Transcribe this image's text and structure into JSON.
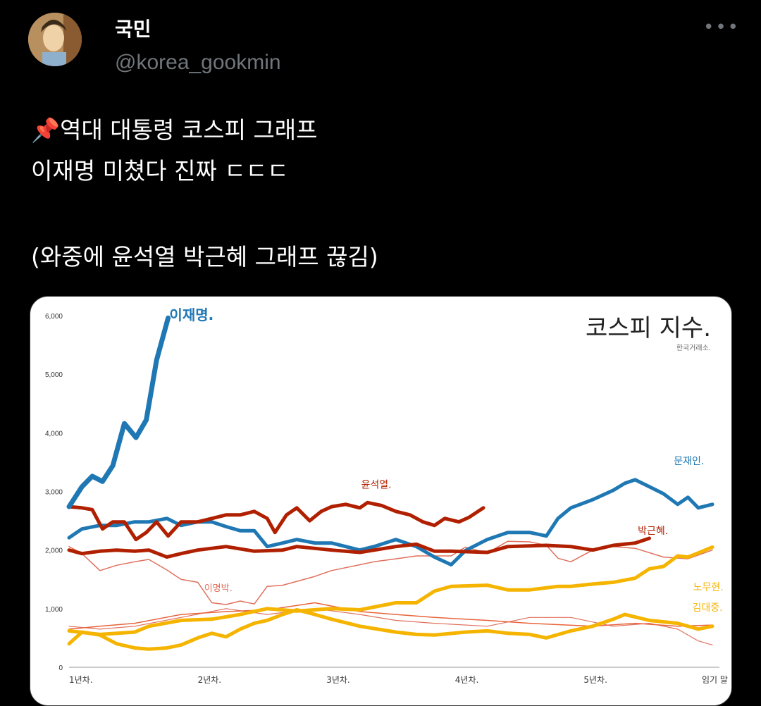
{
  "author": {
    "name": "국민",
    "handle": "@korea_gookmin",
    "avatar_icon": "avatar-cartoon-man"
  },
  "more_icon": "more-dots-icon",
  "post": {
    "pin_icon": "pushpin-icon",
    "line1": "역대 대통령 코스피 그래프",
    "line2": "이재명 미쳤다 진짜 ㄷㄷㄷ",
    "line3": "(와중에 윤석열 박근혜 그래프 끊김)"
  },
  "chart_data": {
    "type": "line",
    "title": "코스피 지수.",
    "source": "한국거래소.",
    "xlabel": "",
    "ylabel": "",
    "x_ticks": [
      {
        "x": 1,
        "label": "1년차."
      },
      {
        "x": 2,
        "label": "2년차."
      },
      {
        "x": 3,
        "label": "3년차."
      },
      {
        "x": 4,
        "label": "4년차."
      },
      {
        "x": 5,
        "label": "5년차."
      },
      {
        "x": 6,
        "label": "임기 말"
      }
    ],
    "y_ticks": [
      {
        "y": 0,
        "label": "0"
      },
      {
        "y": 1000,
        "label": "1,000"
      },
      {
        "y": 2000,
        "label": "2,000"
      },
      {
        "y": 3000,
        "label": "3,000"
      },
      {
        "y": 4000,
        "label": "4,000"
      },
      {
        "y": 5000,
        "label": "5,000"
      },
      {
        "y": 6000,
        "label": "6,000"
      }
    ],
    "xlim": [
      1,
      6
    ],
    "ylim": [
      0,
      6000
    ],
    "grid": false,
    "series": [
      {
        "name": "이재명.",
        "color": "#1f78b4",
        "width": 7,
        "label_at": [
          1.78,
          5930
        ],
        "label_size": 20,
        "bold": true,
        "x": [
          1.0,
          1.1,
          1.18,
          1.26,
          1.34,
          1.43,
          1.52,
          1.6,
          1.68,
          1.77
        ],
        "y": [
          2740,
          3080,
          3260,
          3170,
          3440,
          4160,
          3920,
          4220,
          5240,
          5960
        ]
      },
      {
        "name": "문재인.",
        "color": "#1f78b4",
        "width": 5,
        "label_at": [
          5.7,
          3460
        ],
        "label_size": 14,
        "bold": false,
        "x": [
          1.0,
          1.1,
          1.24,
          1.37,
          1.51,
          1.62,
          1.76,
          1.87,
          2.0,
          2.11,
          2.22,
          2.33,
          2.44,
          2.54,
          2.66,
          2.77,
          2.91,
          3.04,
          3.15,
          3.26,
          3.37,
          3.54,
          3.7,
          3.84,
          3.97,
          4.08,
          4.25,
          4.41,
          4.58,
          4.71,
          4.8,
          4.9,
          5.07,
          5.23,
          5.32,
          5.4,
          5.51,
          5.62,
          5.73,
          5.81,
          5.89,
          6.0
        ],
        "y": [
          2210,
          2360,
          2420,
          2420,
          2480,
          2480,
          2540,
          2420,
          2480,
          2480,
          2400,
          2330,
          2330,
          2060,
          2120,
          2180,
          2120,
          2120,
          2060,
          2000,
          2060,
          2180,
          2060,
          1880,
          1750,
          1990,
          2180,
          2300,
          2300,
          2240,
          2540,
          2720,
          2860,
          3020,
          3140,
          3200,
          3080,
          2960,
          2780,
          2900,
          2720,
          2780
        ]
      },
      {
        "name": "윤석열.",
        "color": "#b02000",
        "width": 5,
        "label_at": [
          3.27,
          3060
        ],
        "label_size": 14,
        "bold": false,
        "x": [
          1.0,
          1.1,
          1.18,
          1.26,
          1.34,
          1.43,
          1.52,
          1.6,
          1.68,
          1.77,
          1.87,
          2.0,
          2.11,
          2.22,
          2.33,
          2.44,
          2.54,
          2.6,
          2.69,
          2.77,
          2.87,
          2.96,
          3.04,
          3.15,
          3.26,
          3.32,
          3.43,
          3.54,
          3.65,
          3.75,
          3.84,
          3.92,
          4.03,
          4.11,
          4.22
        ],
        "y": [
          2740,
          2720,
          2690,
          2360,
          2480,
          2480,
          2180,
          2300,
          2480,
          2240,
          2480,
          2480,
          2540,
          2600,
          2600,
          2660,
          2540,
          2300,
          2600,
          2720,
          2500,
          2660,
          2740,
          2780,
          2720,
          2810,
          2760,
          2660,
          2600,
          2480,
          2420,
          2540,
          2480,
          2560,
          2720
        ]
      },
      {
        "name": "박근혜.",
        "color": "#b02000",
        "width": 5,
        "label_at": [
          5.42,
          2270
        ],
        "label_size": 14,
        "bold": false,
        "x": [
          1.0,
          1.1,
          1.24,
          1.37,
          1.51,
          1.62,
          1.76,
          1.87,
          2.0,
          2.22,
          2.44,
          2.66,
          2.77,
          3.04,
          3.26,
          3.54,
          3.7,
          3.84,
          3.97,
          4.25,
          4.41,
          4.71,
          4.9,
          5.07,
          5.23,
          5.4,
          5.51
        ],
        "y": [
          2000,
          1940,
          1980,
          2000,
          1980,
          2000,
          1880,
          1940,
          2000,
          2060,
          1980,
          2000,
          2060,
          2000,
          1960,
          2060,
          2100,
          1980,
          1980,
          1960,
          2060,
          2080,
          2060,
          2000,
          2080,
          2120,
          2200
        ]
      },
      {
        "name": "이명박.",
        "color": "#e0705c",
        "width": 1.5,
        "label_at": [
          2.05,
          1300
        ],
        "label_size": 13,
        "bold": false,
        "x": [
          1.0,
          1.1,
          1.24,
          1.37,
          1.51,
          1.62,
          1.76,
          1.87,
          2.0,
          2.11,
          2.22,
          2.33,
          2.44,
          2.54,
          2.66,
          2.91,
          3.04,
          3.26,
          3.37,
          3.54,
          3.7,
          3.97,
          4.08,
          4.25,
          4.41,
          4.58,
          4.71,
          4.8,
          4.9,
          5.07,
          5.23,
          5.4,
          5.62,
          5.81,
          6.0
        ],
        "y": [
          2060,
          1940,
          1650,
          1740,
          1800,
          1840,
          1660,
          1500,
          1450,
          1100,
          1070,
          1130,
          1080,
          1380,
          1400,
          1550,
          1650,
          1750,
          1800,
          1850,
          1900,
          1900,
          2050,
          1950,
          2150,
          2140,
          2080,
          1860,
          1800,
          2000,
          2060,
          2030,
          1880,
          1850,
          2000
        ]
      },
      {
        "name": "노무현.",
        "color": "#f5b400",
        "width": 5,
        "label_at": [
          5.85,
          1310
        ],
        "label_size": 14,
        "bold": false,
        "x": [
          1.0,
          1.24,
          1.51,
          1.62,
          1.87,
          2.11,
          2.33,
          2.54,
          2.77,
          3.04,
          3.26,
          3.54,
          3.7,
          3.84,
          3.97,
          4.25,
          4.41,
          4.58,
          4.8,
          4.9,
          5.07,
          5.23,
          5.4,
          5.51,
          5.62,
          5.73,
          5.81,
          5.89,
          6.0
        ],
        "y": [
          620,
          560,
          600,
          700,
          800,
          820,
          900,
          1000,
          960,
          1000,
          980,
          1100,
          1100,
          1300,
          1380,
          1400,
          1320,
          1320,
          1380,
          1380,
          1420,
          1450,
          1520,
          1680,
          1720,
          1900,
          1880,
          1950,
          2050
        ]
      },
      {
        "name": "김대중.",
        "color": "#f5b400",
        "width": 5,
        "label_at": [
          6.08,
          960
        ],
        "label_size": 14,
        "bold": false,
        "x": [
          1.0,
          1.1,
          1.24,
          1.37,
          1.51,
          1.62,
          1.76,
          1.87,
          2.0,
          2.11,
          2.22,
          2.33,
          2.44,
          2.54,
          2.66,
          2.77,
          2.91,
          3.04,
          3.26,
          3.54,
          3.7,
          3.84,
          4.08,
          4.25,
          4.41,
          4.58,
          4.71,
          4.9,
          5.07,
          5.23,
          5.32,
          5.51,
          5.73,
          5.89,
          6.0
        ],
        "y": [
          400,
          600,
          550,
          400,
          330,
          310,
          330,
          380,
          500,
          580,
          520,
          650,
          750,
          800,
          900,
          980,
          900,
          820,
          700,
          600,
          560,
          550,
          600,
          620,
          580,
          560,
          500,
          620,
          700,
          820,
          900,
          800,
          750,
          650,
          700
        ]
      },
      {
        "color": "#e8643c",
        "width": 1.5,
        "x": [
          1.0,
          1.24,
          1.51,
          1.87,
          2.22,
          2.54,
          2.91,
          3.26,
          3.54,
          3.84,
          4.25,
          4.58,
          5.07,
          5.4,
          5.73,
          6.0
        ],
        "y": [
          650,
          700,
          750,
          900,
          950,
          980,
          1100,
          950,
          900,
          850,
          800,
          750,
          700,
          750,
          700,
          720
        ]
      },
      {
        "color": "#e0705c",
        "width": 1.2,
        "x": [
          1.0,
          1.24,
          1.51,
          1.87,
          2.22,
          2.54,
          2.91,
          3.26,
          3.54,
          3.84,
          4.25,
          4.58,
          4.9,
          5.23,
          5.51,
          5.73,
          5.89,
          6.0
        ],
        "y": [
          700,
          650,
          700,
          850,
          1000,
          900,
          1000,
          900,
          800,
          750,
          700,
          850,
          850,
          700,
          750,
          650,
          450,
          380
        ]
      }
    ]
  }
}
